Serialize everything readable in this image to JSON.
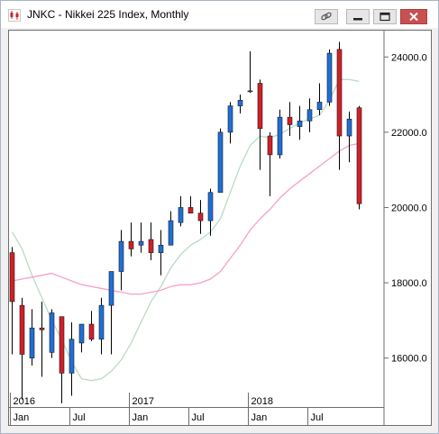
{
  "window": {
    "title": "JNKC - Nikkei 225 Index, Monthly",
    "icons": [
      "chart-app-icon",
      "link-icon",
      "minimize-icon",
      "restore-icon",
      "close-icon"
    ]
  },
  "colors": {
    "up": "#1f6fd6",
    "down": "#d21f26",
    "ma_fast": "#b9dbc2",
    "ma_slow": "#f5a0c9"
  },
  "chart_data": {
    "type": "candlestick",
    "title": "",
    "xlabel": "",
    "ylabel": "",
    "ylim": [
      14700,
      24700
    ],
    "yticks": [
      16000,
      18000,
      20000,
      22000,
      24000
    ],
    "ytick_labels": [
      "16000.0",
      "18000.0",
      "20000.0",
      "22000.0",
      "24000.0"
    ],
    "year_labels": [
      {
        "label": "2016",
        "month_index": 0
      },
      {
        "label": "2017",
        "month_index": 12
      },
      {
        "label": "2018",
        "month_index": 24
      }
    ],
    "month_labels": [
      {
        "label": "Jan",
        "month_index": 0
      },
      {
        "label": "Jul",
        "month_index": 6
      },
      {
        "label": "Jan",
        "month_index": 12
      },
      {
        "label": "Jul",
        "month_index": 18
      },
      {
        "label": "Jan",
        "month_index": 24
      },
      {
        "label": "Jul",
        "month_index": 30
      }
    ],
    "candles": [
      {
        "o": 18800,
        "h": 18950,
        "l": 16100,
        "c": 17500
      },
      {
        "o": 17400,
        "h": 17600,
        "l": 14900,
        "c": 16100
      },
      {
        "o": 16000,
        "h": 17300,
        "l": 15800,
        "c": 16800
      },
      {
        "o": 16800,
        "h": 17500,
        "l": 15500,
        "c": 16750
      },
      {
        "o": 16150,
        "h": 17300,
        "l": 16000,
        "c": 17200
      },
      {
        "o": 17100,
        "h": 17100,
        "l": 14800,
        "c": 15600
      },
      {
        "o": 15600,
        "h": 16950,
        "l": 15000,
        "c": 16500
      },
      {
        "o": 16400,
        "h": 16900,
        "l": 16150,
        "c": 16900
      },
      {
        "o": 16900,
        "h": 17250,
        "l": 16450,
        "c": 16500
      },
      {
        "o": 16500,
        "h": 17600,
        "l": 16100,
        "c": 17400
      },
      {
        "o": 17400,
        "h": 18300,
        "l": 16100,
        "c": 18300
      },
      {
        "o": 18300,
        "h": 19400,
        "l": 17800,
        "c": 19100
      },
      {
        "o": 19100,
        "h": 19600,
        "l": 18700,
        "c": 18900
      },
      {
        "o": 19000,
        "h": 19600,
        "l": 18800,
        "c": 19100
      },
      {
        "o": 19150,
        "h": 19600,
        "l": 18600,
        "c": 18800
      },
      {
        "o": 18800,
        "h": 19400,
        "l": 18200,
        "c": 19000
      },
      {
        "o": 19000,
        "h": 19900,
        "l": 19000,
        "c": 19650
      },
      {
        "o": 19600,
        "h": 20300,
        "l": 19500,
        "c": 20000
      },
      {
        "o": 20000,
        "h": 20300,
        "l": 19950,
        "c": 19850
      },
      {
        "o": 19850,
        "h": 20200,
        "l": 19300,
        "c": 19650
      },
      {
        "o": 19650,
        "h": 20500,
        "l": 19250,
        "c": 20400
      },
      {
        "o": 20400,
        "h": 22100,
        "l": 20400,
        "c": 22000
      },
      {
        "o": 22000,
        "h": 22800,
        "l": 21700,
        "c": 22700
      },
      {
        "o": 22700,
        "h": 23000,
        "l": 22500,
        "c": 22850
      },
      {
        "o": 23100,
        "h": 24150,
        "l": 23050,
        "c": 23100
      },
      {
        "o": 23300,
        "h": 23400,
        "l": 21000,
        "c": 22100
      },
      {
        "o": 21900,
        "h": 22000,
        "l": 20300,
        "c": 21400
      },
      {
        "o": 21400,
        "h": 22600,
        "l": 21300,
        "c": 22400
      },
      {
        "o": 22400,
        "h": 22800,
        "l": 21900,
        "c": 22200
      },
      {
        "o": 22150,
        "h": 22700,
        "l": 21800,
        "c": 22300
      },
      {
        "o": 22300,
        "h": 22900,
        "l": 22000,
        "c": 22600
      },
      {
        "o": 22600,
        "h": 23300,
        "l": 22450,
        "c": 22800
      },
      {
        "o": 22800,
        "h": 24200,
        "l": 22700,
        "c": 24100
      },
      {
        "o": 24200,
        "h": 24400,
        "l": 21000,
        "c": 21900
      },
      {
        "o": 21900,
        "h": 22550,
        "l": 21200,
        "c": 22350
      },
      {
        "o": 22650,
        "h": 22700,
        "l": 19950,
        "c": 20100
      }
    ],
    "series": [
      {
        "values": [
          19350,
          18900,
          18200,
          17600,
          17000,
          16500,
          15900,
          15450,
          15400,
          15450,
          15650,
          15950,
          16400,
          16950,
          17500,
          17900,
          18400,
          18750,
          19000,
          19150,
          19350,
          19700,
          20400,
          21100,
          21650,
          21900,
          21850,
          21950,
          22100,
          22250,
          22350,
          22450,
          22850,
          23400,
          23400,
          23350
        ]
      },
      {
        "values": [
          18050,
          18100,
          18150,
          18200,
          18250,
          18150,
          18050,
          17950,
          17900,
          17850,
          17800,
          17750,
          17700,
          17700,
          17750,
          17800,
          17900,
          17950,
          17950,
          18000,
          18100,
          18300,
          18650,
          19000,
          19400,
          19700,
          19950,
          20250,
          20500,
          20700,
          20900,
          21100,
          21300,
          21500,
          21650,
          21700
        ]
      }
    ]
  }
}
